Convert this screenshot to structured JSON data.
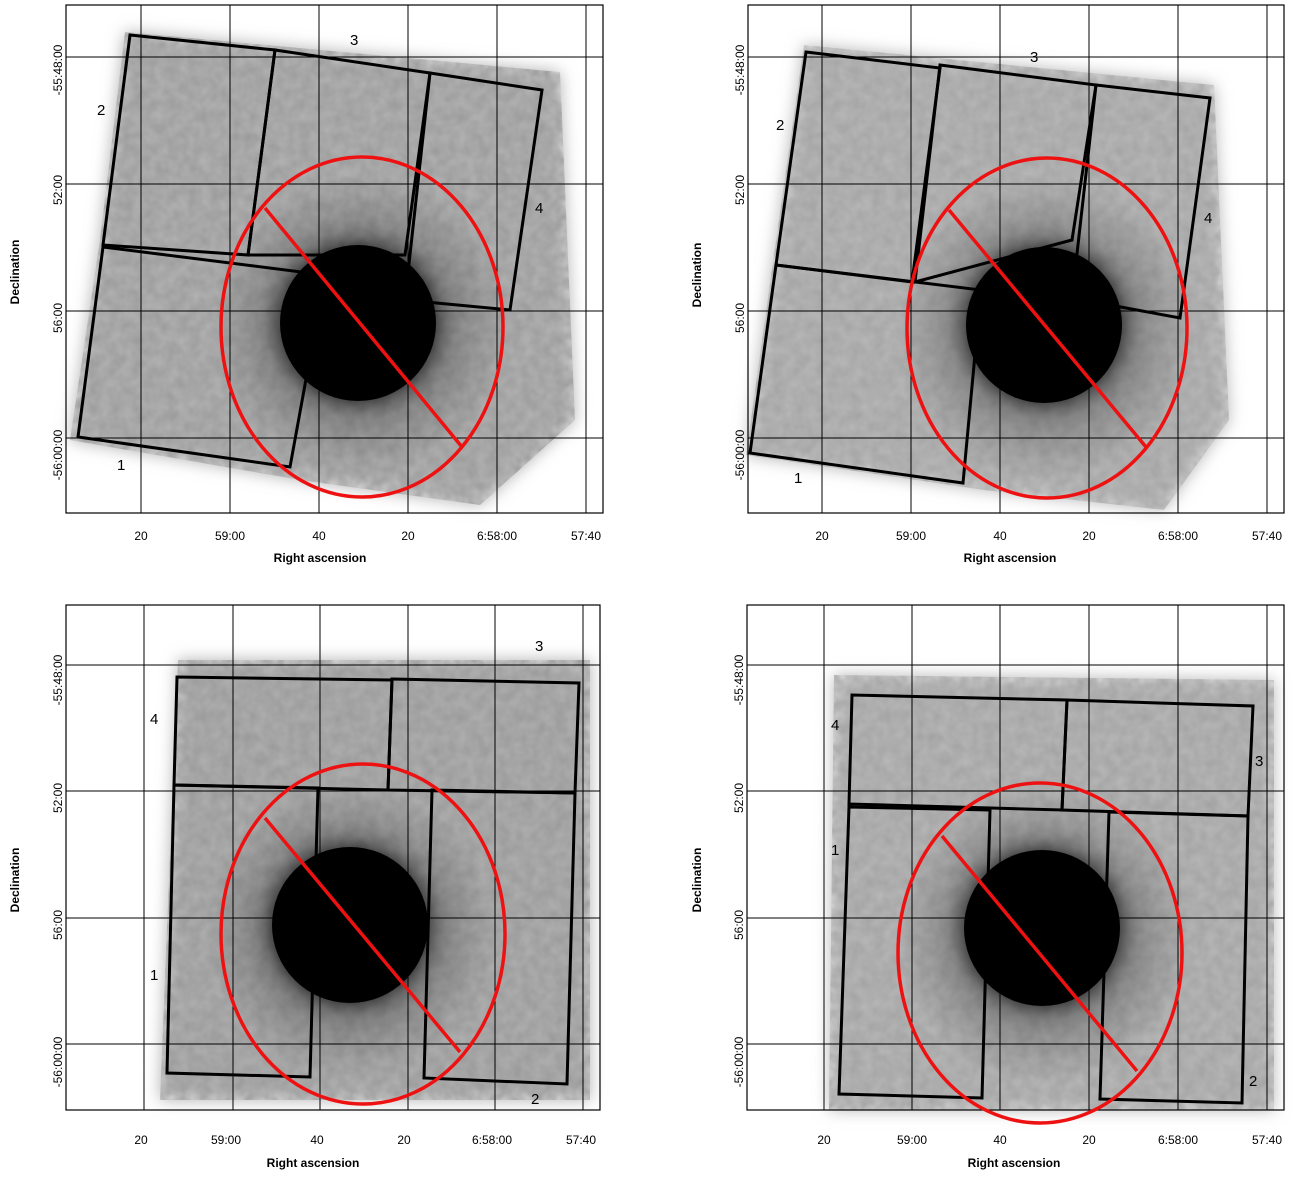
{
  "panels": [
    {
      "xlabel": "Right ascension",
      "ylabel": "Declination",
      "xticks": [
        "20",
        "59:00",
        "40",
        "20",
        "6:58:00",
        "57:40"
      ],
      "yticks": [
        "-55:48:00",
        "52:00",
        "56:00",
        "-56:00:00"
      ],
      "chips": [
        "1",
        "2",
        "3",
        "4"
      ],
      "colors": {
        "frame": "#000000",
        "region": "#ee1111"
      }
    },
    {
      "xlabel": "Right ascension",
      "ylabel": "Declination",
      "xticks": [
        "20",
        "59:00",
        "40",
        "20",
        "6:58:00",
        "57:40"
      ],
      "yticks": [
        "-55:48:00",
        "52:00",
        "56:00",
        "-56:00:00"
      ],
      "chips": [
        "1",
        "2",
        "3",
        "4"
      ],
      "colors": {
        "frame": "#000000",
        "region": "#ee1111"
      }
    },
    {
      "xlabel": "Right ascension",
      "ylabel": "Declination",
      "xticks": [
        "20",
        "59:00",
        "40",
        "20",
        "6:58:00",
        "57:40"
      ],
      "yticks": [
        "-55:48:00",
        "52:00",
        "56:00",
        "-56:00:00"
      ],
      "chips": [
        "1",
        "2",
        "3",
        "4"
      ],
      "colors": {
        "frame": "#000000",
        "region": "#ee1111"
      }
    },
    {
      "xlabel": "Right ascension",
      "ylabel": "Declination",
      "xticks": [
        "20",
        "59:00",
        "40",
        "20",
        "6:58:00",
        "57:40"
      ],
      "yticks": [
        "-55:48:00",
        "52:00",
        "56:00",
        "-56:00:00"
      ],
      "chips": [
        "1",
        "2",
        "3",
        "4"
      ],
      "colors": {
        "frame": "#000000",
        "region": "#ee1111"
      }
    }
  ]
}
